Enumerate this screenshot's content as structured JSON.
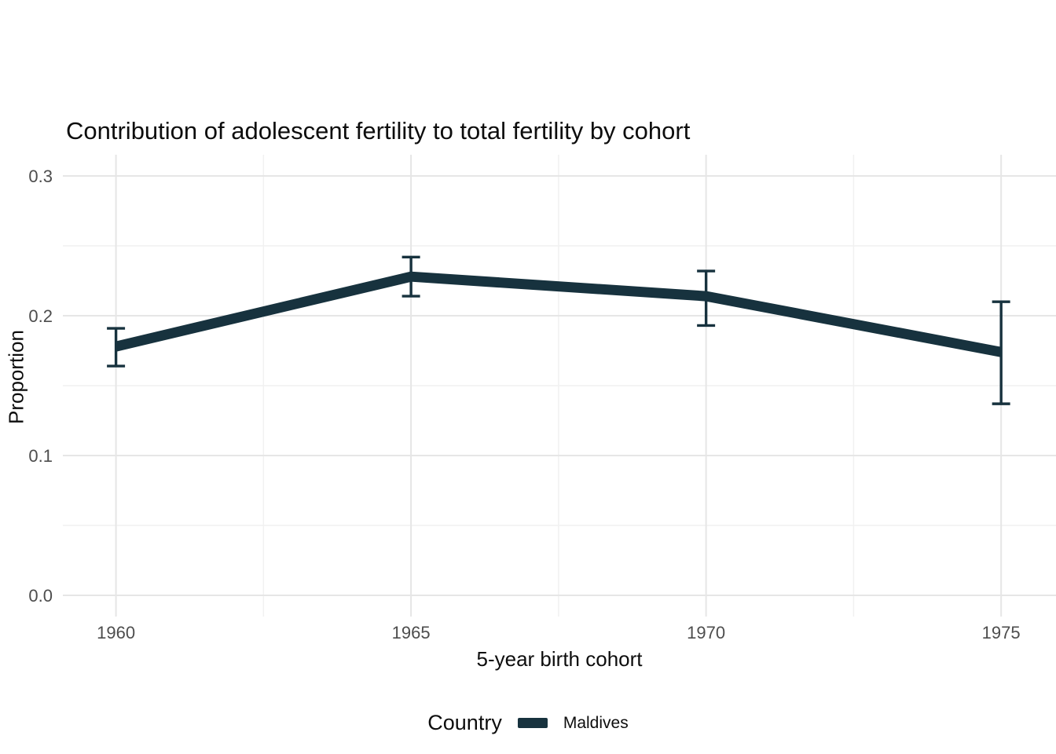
{
  "chart_data": {
    "type": "line",
    "title": "Contribution of adolescent fertility to total fertility by cohort",
    "xlabel": "5-year birth cohort",
    "ylabel": "Proportion",
    "legend_title": "Country",
    "legend_position": "bottom",
    "grid": true,
    "x": [
      1960,
      1965,
      1970,
      1975
    ],
    "x_tick_labels": [
      "1960",
      "1965",
      "1970",
      "1975"
    ],
    "x_minor_ticks": [
      1962.5,
      1967.5,
      1972.5
    ],
    "xlim": [
      1959.1,
      1975.93
    ],
    "y_ticks": [
      0,
      0.1,
      0.2,
      0.3
    ],
    "y_tick_labels": [
      "0.0",
      "0.1",
      "0.2",
      "0.3"
    ],
    "y_minor_ticks": [
      0.05,
      0.15,
      0.25
    ],
    "ylim": [
      -0.0152,
      0.3152
    ],
    "series": [
      {
        "name": "Maldives",
        "color": "#17323e",
        "values": [
          0.178,
          0.228,
          0.214,
          0.174
        ],
        "error_low": [
          0.164,
          0.214,
          0.193,
          0.137
        ],
        "error_high": [
          0.191,
          0.242,
          0.232,
          0.21
        ]
      }
    ]
  },
  "colors": {
    "background": "#ffffff",
    "grid_major": "#e6e6e6",
    "grid_minor": "#f1f1f1",
    "tick_label": "#4d4d4d",
    "text": "#0d0d0d",
    "series": "#17323e"
  }
}
